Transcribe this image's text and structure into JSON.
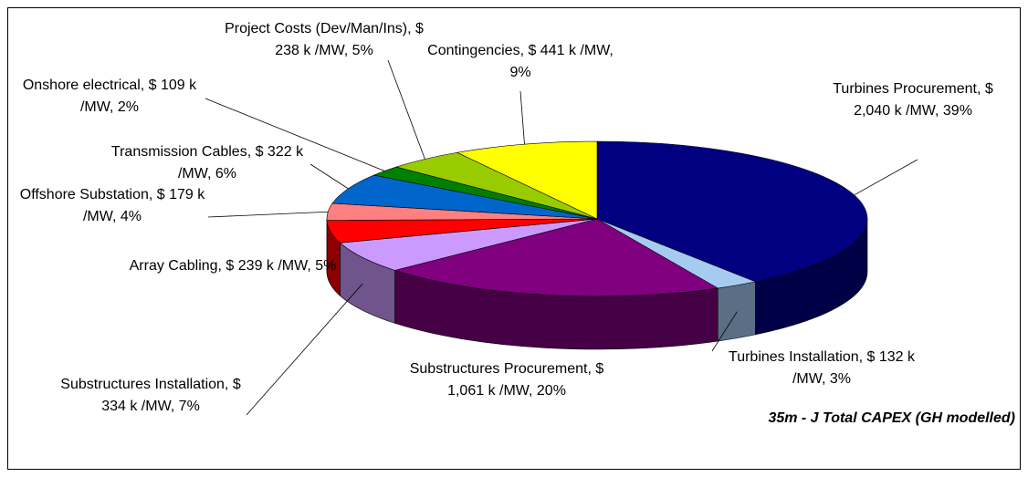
{
  "chart_data": {
    "type": "pie3d",
    "title": "35m - J Total CAPEX (GH modelled)",
    "categories": [
      "Turbines Procurement",
      "Turbines Installation",
      "Substructures Procurement",
      "Substructures Installation",
      "Array Cabling",
      "Offshore Substation",
      "Transmission Cables",
      "Onshore electrical",
      "Project Costs (Dev/Man/Ins)",
      "Contingencies"
    ],
    "values": [
      2040,
      132,
      1061,
      334,
      239,
      179,
      322,
      109,
      238,
      441
    ],
    "value_labels": [
      "Turbines Procurement, $ 2,040 k /MW, 39%",
      "Turbines Installation, $ 132 k /MW, 3%",
      "Substructures Procurement, $ 1,061 k /MW, 20%",
      "Substructures Installation, $ 334 k /MW, 7%",
      "Array Cabling, $ 239 k /MW, 5%",
      "Offshore Substation, $ 179 k /MW, 4%",
      "Transmission Cables, $ 322 k /MW, 6%",
      "Onshore electrical, $ 109 k /MW, 2%",
      "Project Costs (Dev/Man/Ins), $ 238 k /MW, 5%",
      "Contingencies, $ 441 k /MW, 9%"
    ],
    "colors": [
      "#000080",
      "#a6caf0",
      "#800080",
      "#cc99ff",
      "#ff0000",
      "#ff8080",
      "#0066cc",
      "#008000",
      "#99cc00",
      "#ffff00"
    ]
  }
}
